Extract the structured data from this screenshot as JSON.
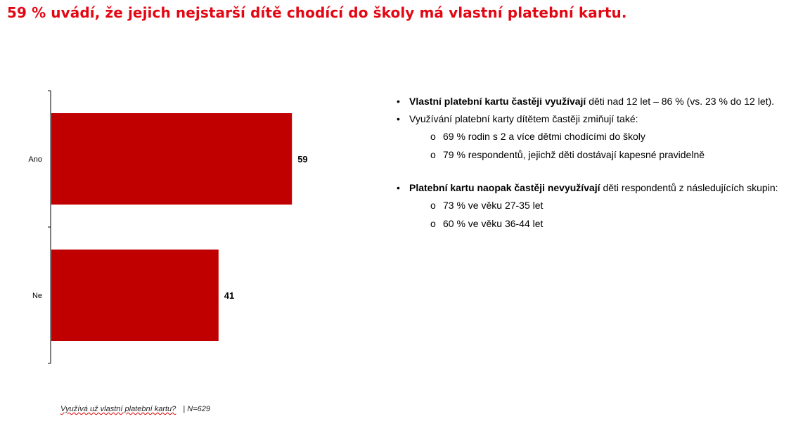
{
  "title": "59 % uvádí, že jejich nejstarší dítě chodící do školy má vlastní platební kartu.",
  "colors": {
    "title": "#e30613",
    "bar": "#c00000"
  },
  "chart_data": {
    "type": "bar",
    "orientation": "horizontal",
    "categories": [
      "Ano",
      "Ne"
    ],
    "values": [
      59,
      41
    ],
    "data_labels": [
      "59",
      "41"
    ],
    "xlim": [
      0,
      100
    ],
    "grid": false,
    "legend": "none"
  },
  "bullets": {
    "b1_bold": "Vlastní platební kartu častěji využívají",
    "b1_rest": " děti nad 12 let – 86 % (vs. 23 % do 12 let).",
    "b2": "Využívání platební karty dítětem častěji zmiňují také:",
    "b2_subs": [
      "69 % rodin s 2 a více dětmi chodícími do školy",
      "79 % respondentů, jejichž děti dostávají kapesné pravidelně"
    ],
    "b3_bold": "Platební kartu naopak častěji nevyužívají",
    "b3_rest": " děti respondentů z následujících skupin:",
    "b3_subs": [
      "73 % ve věku 27-35 let",
      "60 % ve věku 36-44 let"
    ]
  },
  "footer": {
    "question": "Využívá už vlastní platební kartu?",
    "n": "N=629"
  }
}
